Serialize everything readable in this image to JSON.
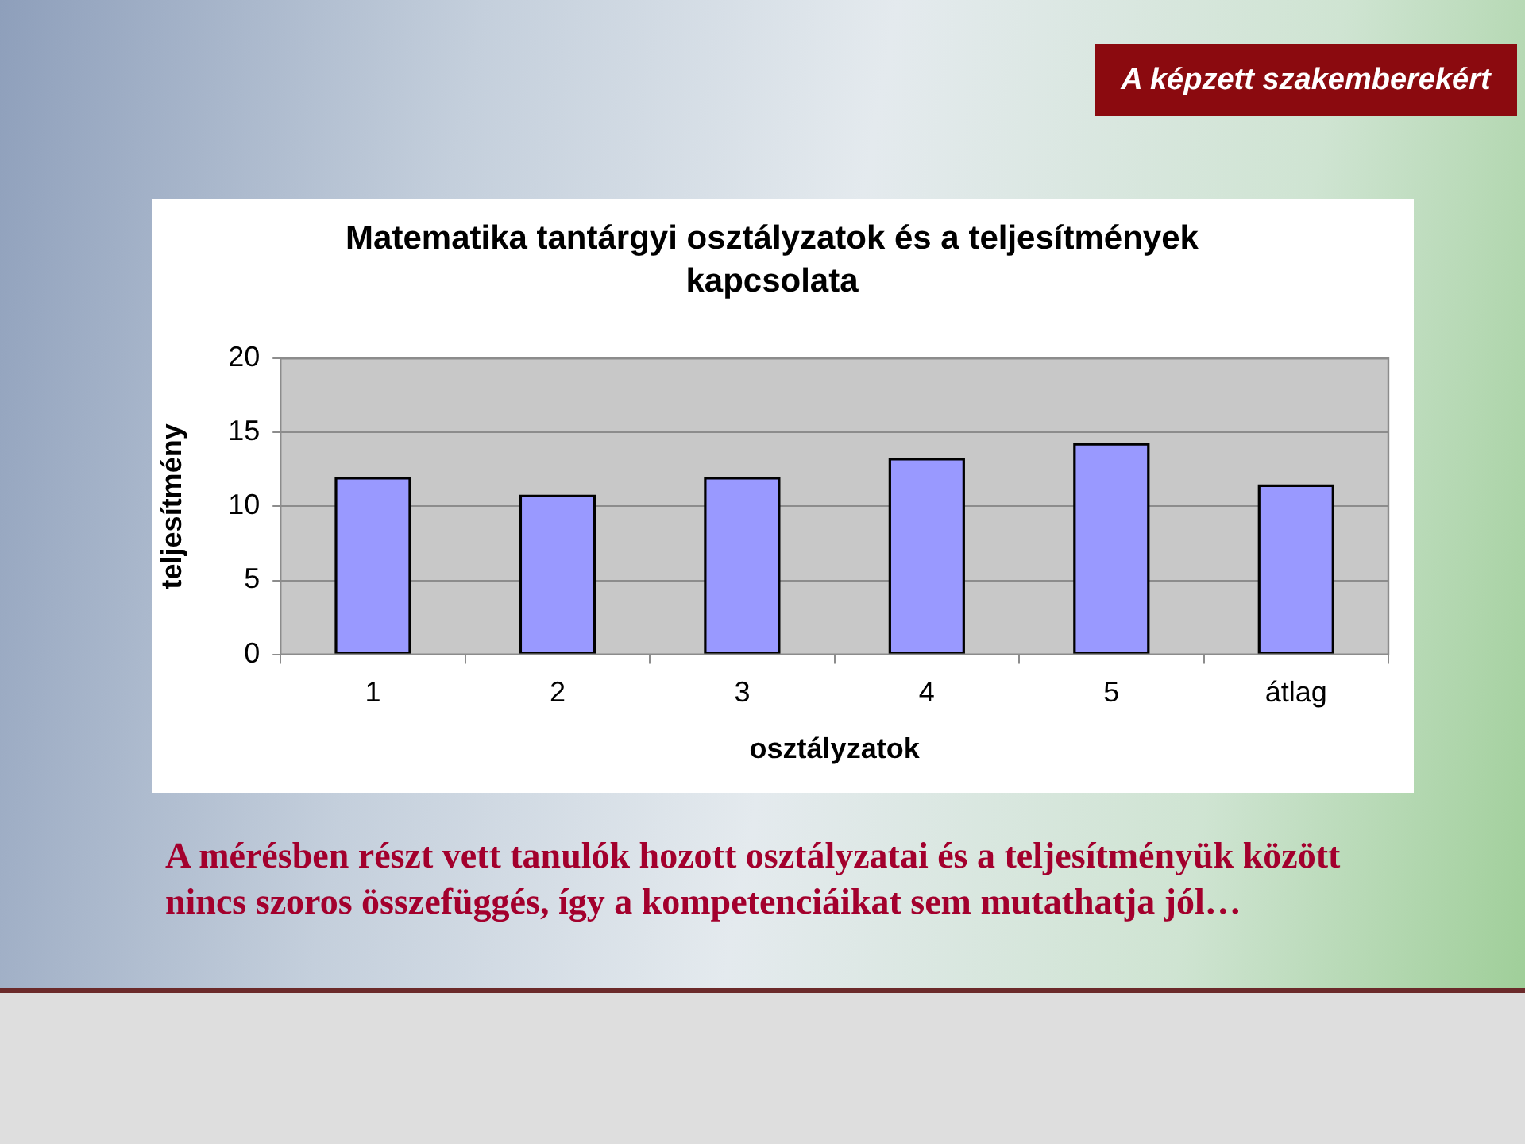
{
  "chart_data": {
    "type": "bar",
    "title": "Matematika tantárgyi osztályzatok és a teljesítmények kapcsolata",
    "xlabel": "osztályzatok",
    "ylabel": "teljesítmény",
    "categories": [
      "1",
      "2",
      "3",
      "4",
      "5",
      "átlag"
    ],
    "values": [
      11.9,
      10.7,
      11.9,
      13.2,
      14.2,
      11.4
    ],
    "color": "#9999ff",
    "ylim": [
      0,
      20
    ],
    "yticks": [
      0,
      5,
      10,
      15,
      20
    ],
    "grid": "y",
    "annotations": [
      "A képzett szakemberekért",
      "A mérésben részt vett tanulók hozott osztályzatai és a teljesítményük között nincs szoros összefüggés, így a kompetenciáikat sem mutathatja jól…"
    ]
  }
}
